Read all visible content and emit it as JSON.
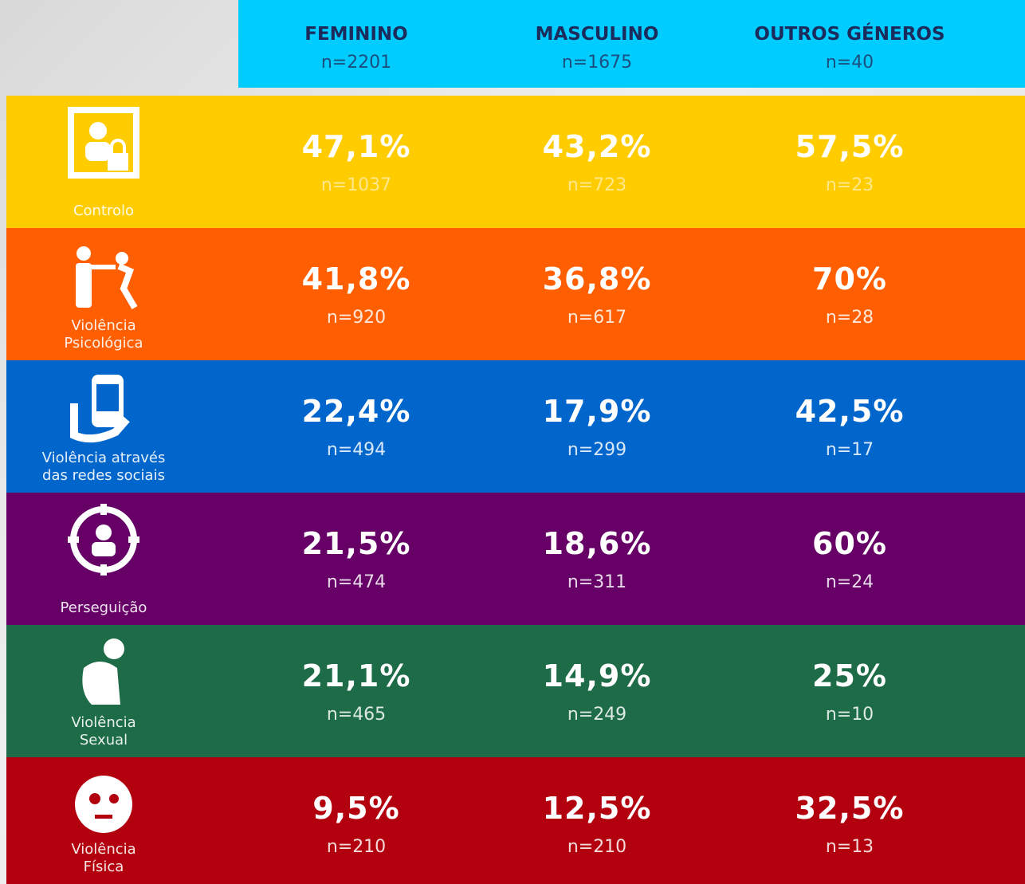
{
  "columns": [
    {
      "name": "FEMININO",
      "n": "n=2201"
    },
    {
      "name": "MASCULINO",
      "n": "n=1675"
    },
    {
      "name": "OUTROS GÉNEROS",
      "n": "n=40"
    }
  ],
  "rows": [
    {
      "label_lines": [
        "Controlo"
      ],
      "color": "#ffcc00",
      "cells": [
        {
          "pct": "47,1%",
          "n": "n=1037"
        },
        {
          "pct": "43,2%",
          "n": "n=723"
        },
        {
          "pct": "57,5%",
          "n": "n=23"
        }
      ]
    },
    {
      "label_lines": [
        "Violência",
        "Psicológica"
      ],
      "color": "#ff5f00",
      "cells": [
        {
          "pct": "41,8%",
          "n": "n=920"
        },
        {
          "pct": "36,8%",
          "n": "n=617"
        },
        {
          "pct": "70%",
          "n": "n=28"
        }
      ]
    },
    {
      "label_lines": [
        "Violência através",
        "das redes sociais"
      ],
      "color": "#0066cc",
      "cells": [
        {
          "pct": "22,4%",
          "n": "n=494"
        },
        {
          "pct": "17,9%",
          "n": "n=299"
        },
        {
          "pct": "42,5%",
          "n": "n=17"
        }
      ]
    },
    {
      "label_lines": [
        "Perseguição"
      ],
      "color": "#660066",
      "cells": [
        {
          "pct": "21,5%",
          "n": "n=474"
        },
        {
          "pct": "18,6%",
          "n": "n=311"
        },
        {
          "pct": "60%",
          "n": "n=24"
        }
      ]
    },
    {
      "label_lines": [
        "Violência",
        "Sexual"
      ],
      "color": "#1d6b47",
      "cells": [
        {
          "pct": "21,1%",
          "n": "n=465"
        },
        {
          "pct": "14,9%",
          "n": "n=249"
        },
        {
          "pct": "25%",
          "n": "n=10"
        }
      ]
    },
    {
      "label_lines": [
        "Violência",
        "Física"
      ],
      "color": "#b3000f",
      "cells": [
        {
          "pct": "9,5%",
          "n": "n=210"
        },
        {
          "pct": "12,5%",
          "n": "n=210"
        },
        {
          "pct": "32,5%",
          "n": "n=13"
        }
      ]
    }
  ]
}
